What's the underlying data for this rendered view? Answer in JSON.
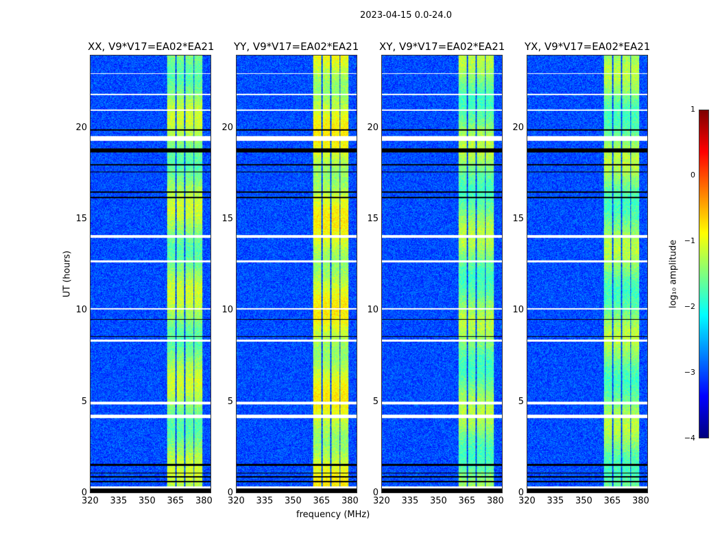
{
  "chart_data": {
    "type": "heatmap",
    "title": "2023-04-15 0.0-24.0",
    "xlabel": "frequency (MHz)",
    "ylabel": "UT (hours)",
    "xlim": [
      320,
      384
    ],
    "ylim": [
      0,
      24
    ],
    "xticks": [
      "320",
      "335",
      "350",
      "365",
      "380"
    ],
    "yticks": [
      "0",
      "5",
      "10",
      "15",
      "20"
    ],
    "panels": [
      {
        "title": "XX, V9*V17=EA02*EA21",
        "band_level": -1.4
      },
      {
        "title": "YY, V9*V17=EA02*EA21",
        "band_level": -1.1
      },
      {
        "title": "XY, V9*V17=EA02*EA21",
        "band_level": -1.5
      },
      {
        "title": "YX, V9*V17=EA02*EA21",
        "band_level": -1.5
      }
    ],
    "background_level": -3.0,
    "rfi_bands_mhz": [
      [
        360.5,
        365
      ],
      [
        365.6,
        369.6
      ],
      [
        370.6,
        374.6
      ],
      [
        375.3,
        379.6
      ]
    ],
    "flagged_white_hours": [
      [
        0.25,
        0.35
      ],
      [
        4.1,
        4.3
      ],
      [
        4.85,
        5.0
      ],
      [
        8.3,
        8.4
      ],
      [
        10.05,
        10.15
      ],
      [
        12.65,
        12.75
      ],
      [
        14.0,
        14.15
      ],
      [
        19.35,
        19.6
      ],
      [
        21.0,
        21.05
      ],
      [
        21.85,
        21.9
      ],
      [
        23.0,
        23.05
      ]
    ],
    "flagged_black_hours": [
      [
        0,
        0.25
      ],
      [
        0.6,
        0.65
      ],
      [
        0.85,
        0.9
      ],
      [
        1.05,
        1.1
      ],
      [
        1.5,
        1.6
      ],
      [
        8.55,
        8.6
      ],
      [
        9.5,
        9.55
      ],
      [
        16.2,
        16.25
      ],
      [
        16.5,
        16.55
      ],
      [
        17.6,
        17.65
      ],
      [
        18.0,
        18.05
      ],
      [
        18.7,
        18.9
      ],
      [
        19.9,
        19.95
      ]
    ],
    "colorbar": {
      "label": "log₁₀ amplitude",
      "range": [
        -4,
        1
      ],
      "ticks": [
        "1",
        "0",
        "−1",
        "−2",
        "−3",
        "−4"
      ],
      "colormap": "jet"
    }
  }
}
